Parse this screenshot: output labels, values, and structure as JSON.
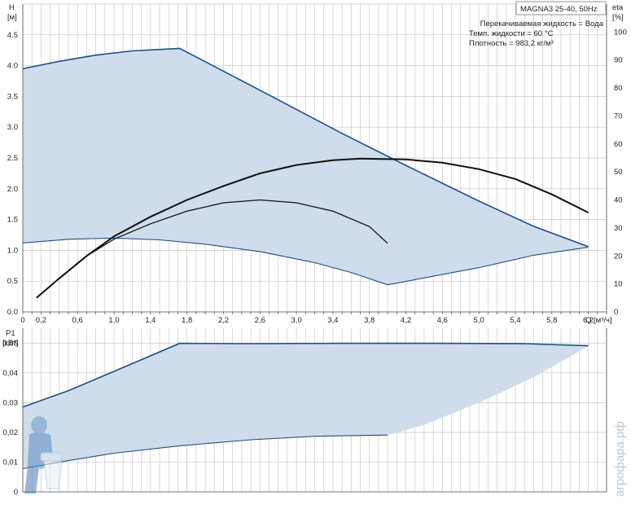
{
  "header": {
    "model": "MAGNA3 25-40, 50Hz",
    "liquid": "Перекачиваемая жидкость = Вода",
    "temperature": "Темп. жидкости = 60 °C",
    "density": "Плотность = 983.2 кг/м³"
  },
  "watermark": "агрофара.рф",
  "chart_data": [
    {
      "type": "area",
      "name": "head-efficiency",
      "ylabel": "H",
      "yunit": "[м]",
      "y2label": "eta",
      "y2unit": "[%]",
      "xlabel": "Q [м³/ч]",
      "xlim": [
        0,
        6.4
      ],
      "ylim": [
        0,
        5.0
      ],
      "y2lim": [
        0,
        110
      ],
      "xticks": [
        "0",
        "0,2",
        "0,6",
        "1,0",
        "1,4",
        "1,8",
        "2,2",
        "2,6",
        "3,0",
        "3,4",
        "3,8",
        "4,2",
        "4,6",
        "5,0",
        "5,4",
        "5,8",
        "6,2"
      ],
      "yticks": [
        "0.0",
        "0.5",
        "1.0",
        "1.5",
        "2.0",
        "2.5",
        "3.0",
        "3.5",
        "4.0",
        "4.5"
      ],
      "y2ticks": [
        "0",
        "10",
        "20",
        "30",
        "40",
        "50",
        "60",
        "70",
        "80",
        "90",
        "100"
      ],
      "grid": true,
      "max_head": [
        [
          0,
          3.95
        ],
        [
          0.4,
          4.07
        ],
        [
          0.8,
          4.17
        ],
        [
          1.2,
          4.24
        ],
        [
          1.72,
          4.28
        ],
        [
          2.6,
          3.6
        ],
        [
          3.5,
          2.9
        ],
        [
          4.2,
          2.38
        ],
        [
          5.0,
          1.8
        ],
        [
          5.6,
          1.39
        ],
        [
          6.2,
          1.06
        ]
      ],
      "min_head": [
        [
          0,
          1.12
        ],
        [
          0.5,
          1.18
        ],
        [
          1.0,
          1.2
        ],
        [
          1.5,
          1.17
        ],
        [
          2.0,
          1.1
        ],
        [
          2.6,
          0.98
        ],
        [
          3.2,
          0.8
        ],
        [
          3.6,
          0.64
        ],
        [
          4.0,
          0.44
        ],
        [
          5.0,
          0.72
        ],
        [
          5.6,
          0.92
        ],
        [
          6.2,
          1.05
        ]
      ],
      "efficiency_max": [
        [
          0.15,
          5
        ],
        [
          0.4,
          12
        ],
        [
          0.7,
          20
        ],
        [
          1.0,
          27
        ],
        [
          1.4,
          34
        ],
        [
          1.8,
          40
        ],
        [
          2.2,
          45
        ],
        [
          2.6,
          49.5
        ],
        [
          3.0,
          52.5
        ],
        [
          3.4,
          54.2
        ],
        [
          3.7,
          54.8
        ],
        [
          4.2,
          54.5
        ],
        [
          4.6,
          53.3
        ],
        [
          5.0,
          51
        ],
        [
          5.4,
          47.5
        ],
        [
          5.8,
          42
        ],
        [
          6.2,
          35.5
        ]
      ],
      "efficiency_min": [
        [
          0.15,
          5
        ],
        [
          0.4,
          12
        ],
        [
          0.7,
          20
        ],
        [
          1.0,
          26
        ],
        [
          1.4,
          31.5
        ],
        [
          1.8,
          36
        ],
        [
          2.2,
          39
        ],
        [
          2.6,
          40
        ],
        [
          3.0,
          39
        ],
        [
          3.4,
          36
        ],
        [
          3.8,
          30.5
        ],
        [
          4.0,
          24.5
        ]
      ]
    },
    {
      "type": "area",
      "name": "power",
      "ylabel": "P1",
      "yunit": "[кВт]",
      "xlim": [
        0,
        6.4
      ],
      "ylim": [
        0,
        0.055
      ],
      "yticks": [
        "0",
        "0,01",
        "0,02",
        "0,03",
        "0,04",
        "0,05"
      ],
      "grid": true,
      "max_power": [
        [
          0,
          0.0285
        ],
        [
          0.5,
          0.034
        ],
        [
          1.0,
          0.0405
        ],
        [
          1.72,
          0.0499
        ],
        [
          2.5,
          0.0498
        ],
        [
          3.5,
          0.0499
        ],
        [
          4.5,
          0.0499
        ],
        [
          5.5,
          0.0498
        ],
        [
          6.2,
          0.0491
        ]
      ],
      "min_power": [
        [
          0,
          0.0078
        ],
        [
          0.5,
          0.0105
        ],
        [
          1.0,
          0.013
        ],
        [
          1.72,
          0.0155
        ],
        [
          2.5,
          0.0175
        ],
        [
          3.2,
          0.0187
        ],
        [
          4.0,
          0.0191
        ],
        [
          4.4,
          0.0225
        ],
        [
          5.0,
          0.03
        ],
        [
          5.6,
          0.0385
        ],
        [
          6.2,
          0.049
        ]
      ]
    }
  ]
}
